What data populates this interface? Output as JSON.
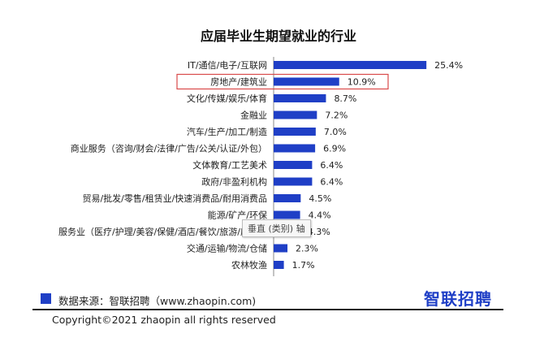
{
  "chart_data": {
    "type": "bar",
    "orientation": "horizontal",
    "title": "应届毕业生期望就业的行业",
    "categories": [
      "IT/通信/电子/互联网",
      "房地产/建筑业",
      "文化/传媒/娱乐/体育",
      "金融业",
      "汽车/生产/加工/制造",
      "商业服务（咨询/财会/法律/广告/公关/认证/外包）",
      "文体教育/工艺美术",
      "政府/非盈利机构",
      "贸易/批发/零售/租赁业/快速消费品/耐用消费品",
      "能源/矿产/环保",
      "服务业（医疗/护理/美容/保健/酒店/餐饮/旅游/度假）",
      "交通/运输/物流/仓储",
      "农林牧渔"
    ],
    "values": [
      25.4,
      10.9,
      8.7,
      7.2,
      7.0,
      6.9,
      6.4,
      6.4,
      4.5,
      4.4,
      4.3,
      2.3,
      1.7
    ],
    "value_labels": [
      "25.4%",
      "10.9%",
      "8.7%",
      "7.2%",
      "7.0%",
      "6.9%",
      "6.4%",
      "6.4%",
      "4.5%",
      "4.4%",
      "4.3%",
      "2.3%",
      "1.7%"
    ],
    "highlighted_category": "房地产/建筑业",
    "xlim": [
      0,
      27
    ],
    "bar_color": "#1f3fc6",
    "highlight_color": "#d94a4a",
    "grid": false
  },
  "tooltip": "垂直 (类别) 轴",
  "footer": {
    "source_label": "数据来源：智联招聘（www.zhaopin.com)",
    "brand": "智联招聘",
    "copyright": "Copyright©2021 zhaopin all rights reserved"
  }
}
